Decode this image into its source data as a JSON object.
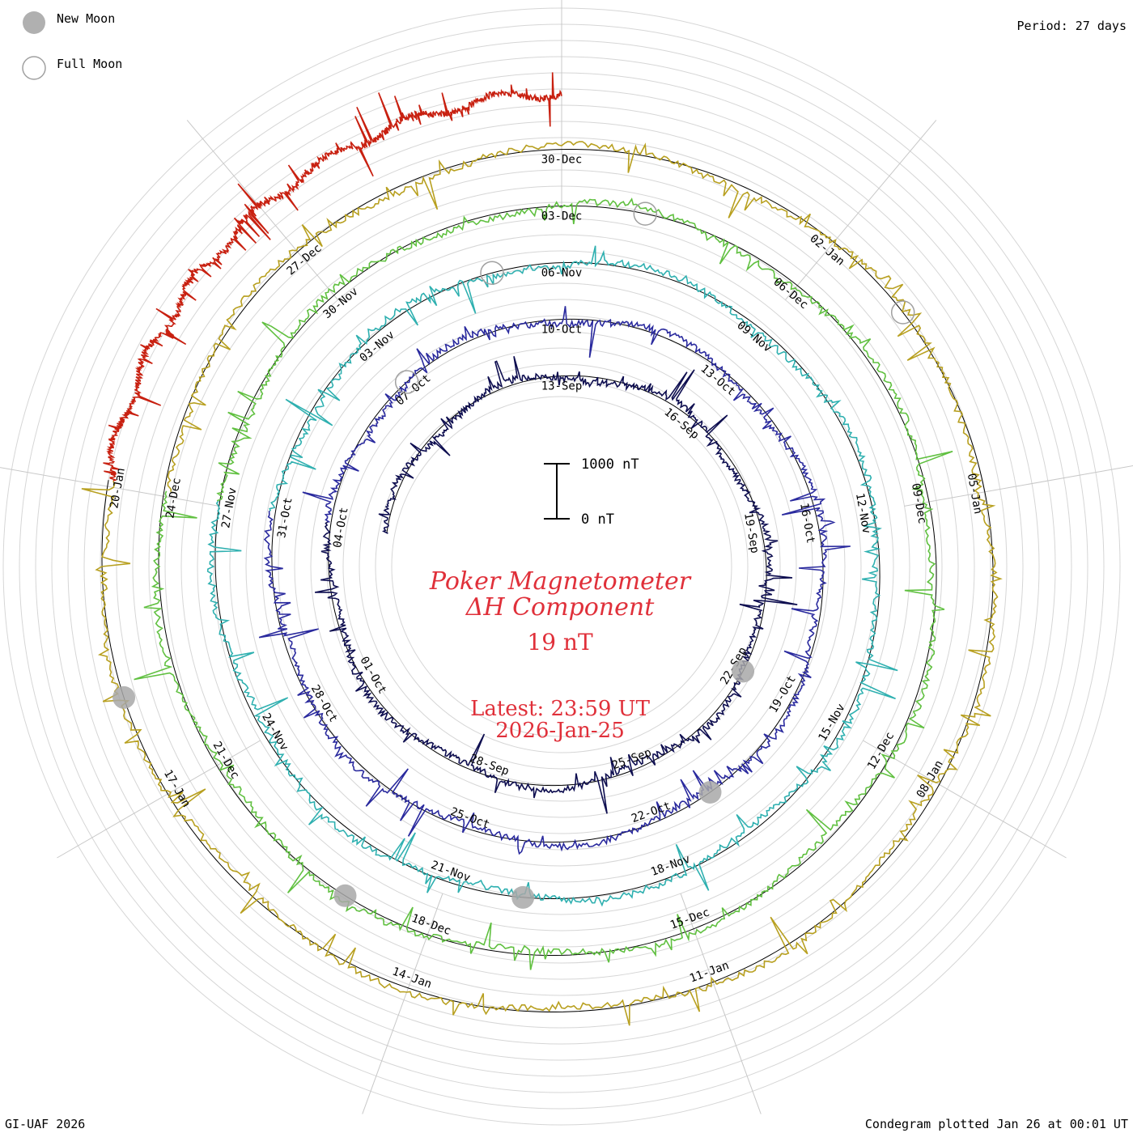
{
  "chart_data": {
    "type": "line",
    "subtype": "polar-condegram",
    "title_line1": "Poker Magnetometer",
    "title_line2": "ΔH Component",
    "value_text": "19 nT",
    "latest_line1": "Latest: 23:59 UT",
    "latest_line2": "2026-Jan-25",
    "period_text": "Period: 27 days",
    "period_days": 27,
    "legend": [
      {
        "label": "New Moon",
        "symbol": "filled-circle"
      },
      {
        "label": "Full Moon",
        "symbol": "open-circle"
      }
    ],
    "scale_bar": {
      "top_label": "1000 nT",
      "bottom_label": "0 nT",
      "top_value": 1000,
      "bottom_value": 0
    },
    "footer_left": "GI-UAF 2026",
    "footer_right": "Condegram plotted Jan 26 at 00:01 UT",
    "series": [
      {
        "name": "13-Sep to 10-Oct",
        "color": "#0e0e50",
        "tick_labels": [
          "13-Sep",
          "16-Sep",
          "19-Sep",
          "22-Sep",
          "25-Sep",
          "28-Sep",
          "01-Oct",
          "04-Oct",
          "07-Oct"
        ]
      },
      {
        "name": "10-Oct to 06-Nov",
        "color": "#2a2a9e",
        "tick_labels": [
          "10-Oct",
          "13-Oct",
          "16-Oct",
          "19-Oct",
          "22-Oct",
          "25-Oct",
          "28-Oct",
          "31-Oct",
          "03-Nov"
        ]
      },
      {
        "name": "06-Nov to 03-Dec",
        "color": "#2fb0b0",
        "tick_labels": [
          "06-Nov",
          "09-Nov",
          "12-Nov",
          "15-Nov",
          "18-Nov",
          "21-Nov",
          "24-Nov",
          "27-Nov",
          "30-Nov"
        ]
      },
      {
        "name": "03-Dec to 30-Dec",
        "color": "#60c040",
        "tick_labels": [
          "03-Dec",
          "06-Dec",
          "09-Dec",
          "12-Dec",
          "15-Dec",
          "18-Dec",
          "21-Dec",
          "24-Dec",
          "27-Dec"
        ]
      },
      {
        "name": "30-Dec to 25-Jan",
        "color": "#b8a020",
        "tick_labels": [
          "30-Dec",
          "02-Jan",
          "05-Jan",
          "08-Jan",
          "11-Jan",
          "14-Jan",
          "17-Jan",
          "20-Jan"
        ]
      },
      {
        "name": "final-days",
        "color": "#c82010",
        "tick_labels": []
      }
    ],
    "new_moons": [
      "22-Sep",
      "21-Oct",
      "20-Nov",
      "19-Dec",
      "18-Jan"
    ],
    "full_moons": [
      "07-Oct",
      "05-Nov",
      "04-Dec",
      "03-Jan"
    ]
  }
}
